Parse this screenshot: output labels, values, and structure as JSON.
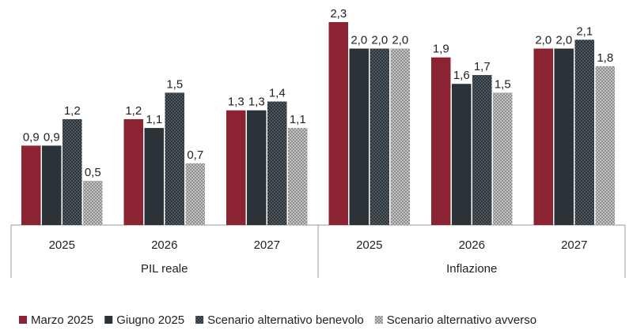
{
  "chart_data": {
    "type": "bar",
    "groups": [
      {
        "label": "PIL reale",
        "categories": [
          "2025",
          "2026",
          "2027"
        ]
      },
      {
        "label": "Inflazione",
        "categories": [
          "2025",
          "2026",
          "2027"
        ]
      }
    ],
    "series": [
      {
        "name": "Marzo 2025",
        "color": "#8b2332",
        "pattern": "solid",
        "values": [
          0.9,
          1.2,
          1.3,
          2.3,
          1.9,
          2.0
        ],
        "labels": [
          "0,9",
          "1,2",
          "1,3",
          "2,3",
          "1,9",
          "2,0"
        ]
      },
      {
        "name": "Giugno 2025",
        "color": "#2b3238",
        "pattern": "solid",
        "values": [
          0.9,
          1.1,
          1.3,
          2.0,
          1.6,
          2.0
        ],
        "labels": [
          "0,9",
          "1,1",
          "1,3",
          "2,0",
          "1,6",
          "2,0"
        ]
      },
      {
        "name": "Scenario alternativo benevolo",
        "color": "#2b3238",
        "pattern": "dark-check",
        "values": [
          1.2,
          1.5,
          1.4,
          2.0,
          1.7,
          2.1
        ],
        "labels": [
          "1,2",
          "1,5",
          "1,4",
          "2,0",
          "1,7",
          "2,1"
        ]
      },
      {
        "name": "Scenario alternativo avverso",
        "color": "#9a9a9a",
        "pattern": "light-check",
        "values": [
          0.5,
          0.7,
          1.1,
          2.0,
          1.5,
          1.8
        ],
        "labels": [
          "0,5",
          "0,7",
          "1,1",
          "2,0",
          "1,5",
          "1,8"
        ]
      }
    ],
    "ylim": [
      0,
      2.3
    ],
    "title": "",
    "xlabel": "",
    "ylabel": "",
    "grid": false,
    "legend": "bottom"
  }
}
